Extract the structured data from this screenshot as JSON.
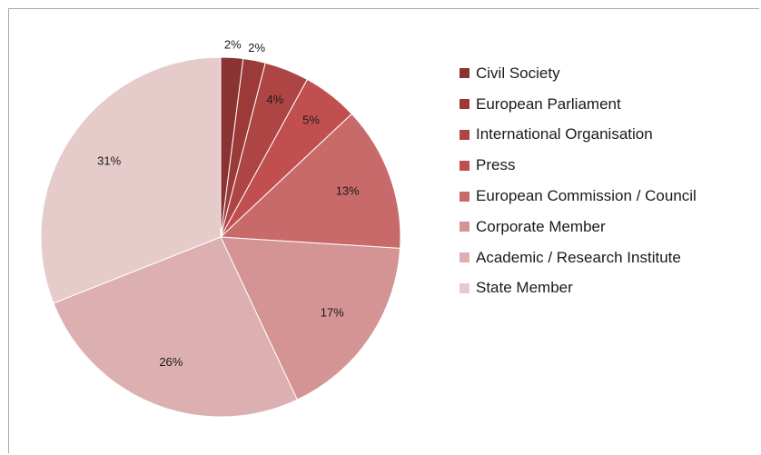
{
  "chart_data": {
    "type": "pie",
    "title": "",
    "legend_position": "right",
    "categories": [
      "Civil Society",
      "European Parliament",
      "International Organisation",
      "Press",
      "European Commission / Council",
      "Corporate Member",
      "Academic / Research Institute",
      "State Member"
    ],
    "values": [
      2,
      2,
      4,
      5,
      13,
      17,
      26,
      31
    ],
    "labels": [
      "2%",
      "2%",
      "4%",
      "5%",
      "13%",
      "17%",
      "26%",
      "31%"
    ],
    "colors": [
      "#8b3232",
      "#9c3a3a",
      "#ad4545",
      "#c24f4f",
      "#c96a6a",
      "#d49494",
      "#dcb0b0",
      "#e6cbcb"
    ]
  }
}
